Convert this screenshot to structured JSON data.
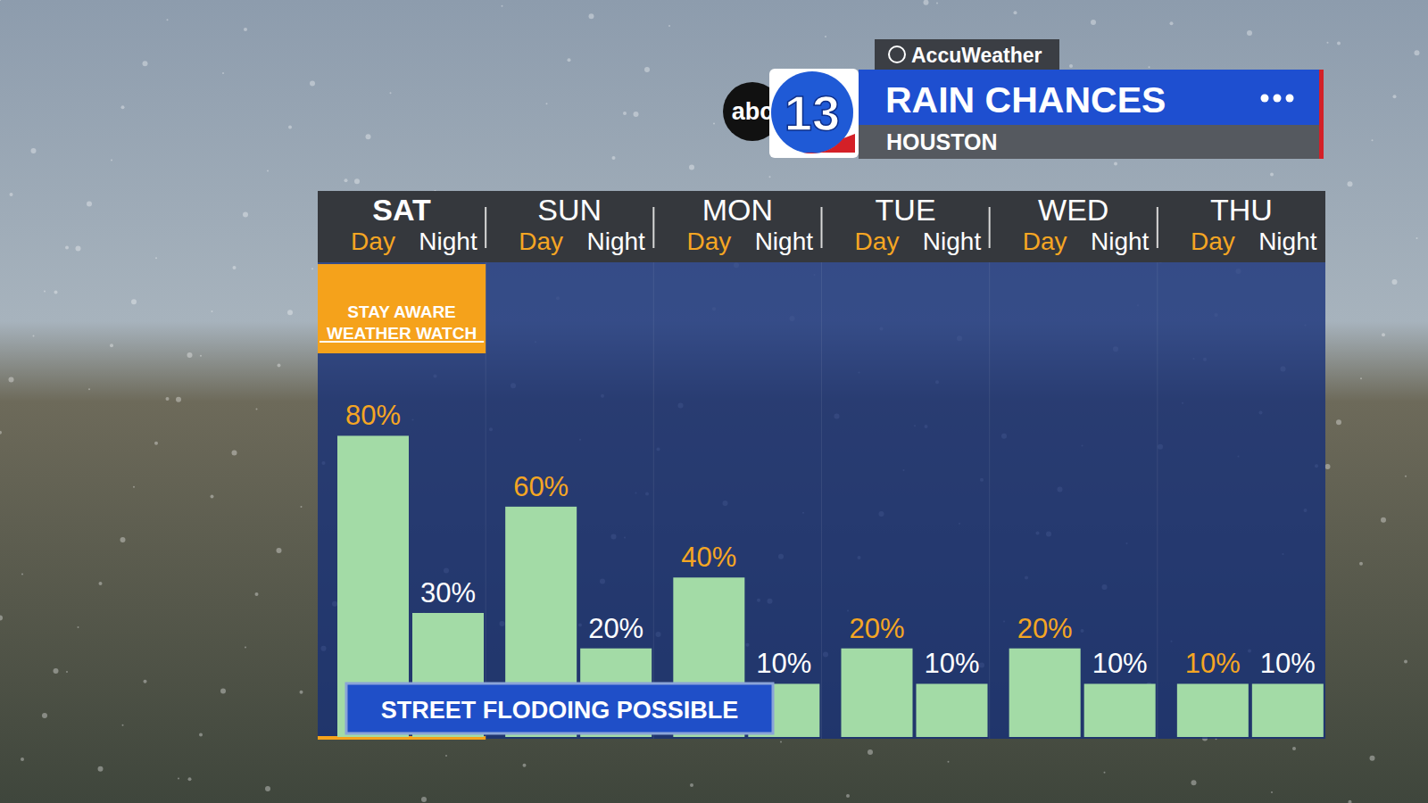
{
  "chart_data": {
    "type": "bar",
    "title": "RAIN CHANCES",
    "subtitle": "HOUSTON",
    "source": "AccuWeather",
    "logo": [
      "abc",
      "13"
    ],
    "groups": [
      "SAT",
      "SUN",
      "MON",
      "TUE",
      "WED",
      "THU"
    ],
    "categories": [
      "Day",
      "Night",
      "Day",
      "Night",
      "Day",
      "Night",
      "Day",
      "Night",
      "Day",
      "Night",
      "Day",
      "Night"
    ],
    "values": [
      80,
      30,
      60,
      20,
      40,
      10,
      20,
      10,
      20,
      10,
      10,
      10
    ],
    "value_labels": [
      "80%",
      "30%",
      "60%",
      "20%",
      "40%",
      "10%",
      "20%",
      "10%",
      "20%",
      "10%",
      "10%",
      "10%"
    ],
    "color": "#a3dba6",
    "ylim": [
      -5,
      100
    ],
    "tick_labels": false,
    "grid": false,
    "data_labels": true,
    "annotations": [
      "STAY AWARE",
      "WEATHER WATCH",
      "STREET FLODOING POSSIBLE"
    ]
  }
}
